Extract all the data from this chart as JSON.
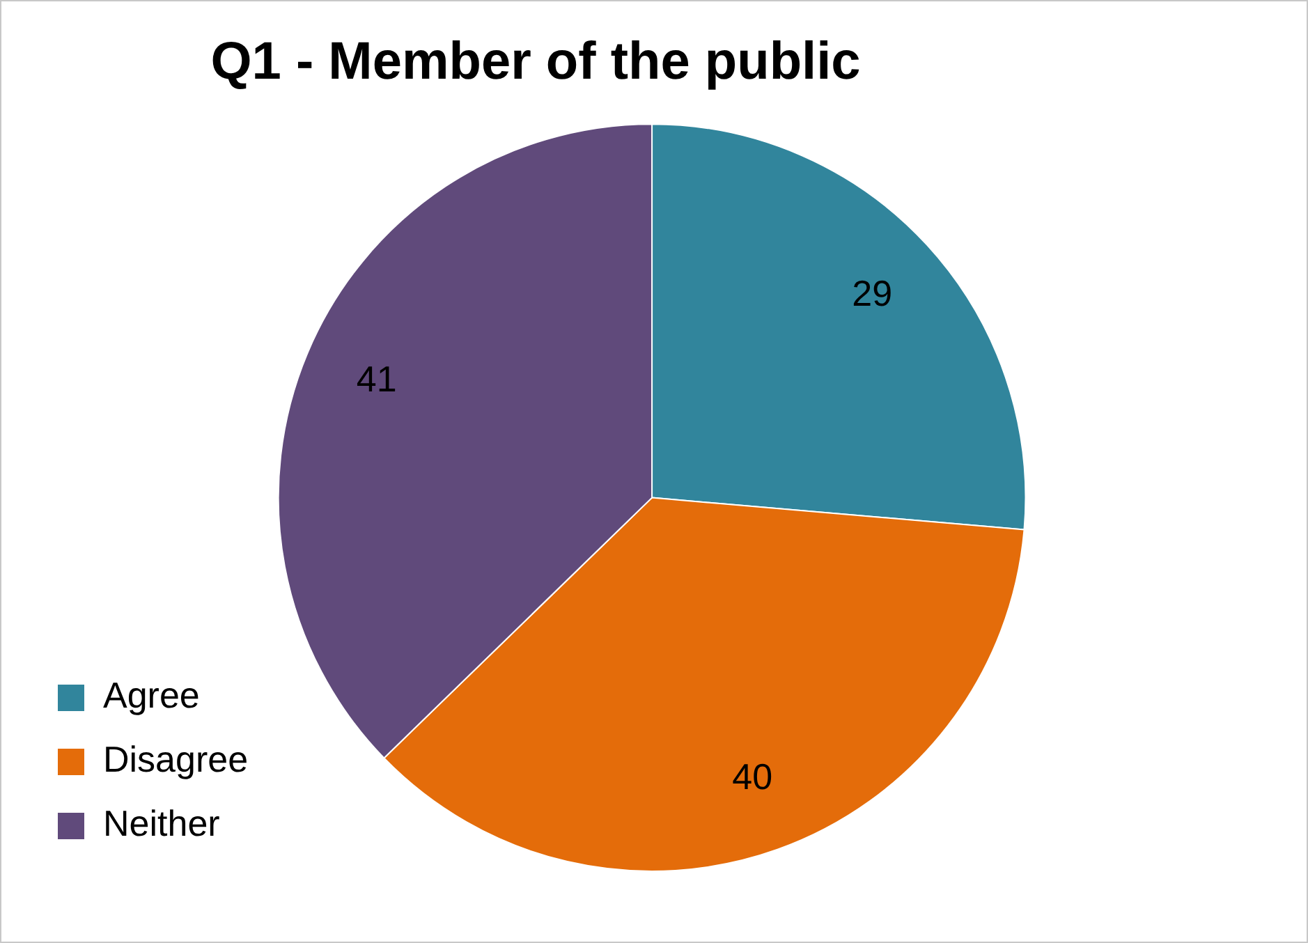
{
  "chart_data": {
    "type": "pie",
    "title": "Q1 - Member of the public",
    "categories": [
      "Agree",
      "Disagree",
      "Neither"
    ],
    "values": [
      29,
      40,
      41
    ],
    "colors": [
      "#31859c",
      "#e46c0a",
      "#604a7b"
    ],
    "data_labels": true,
    "legend": "bottom left"
  }
}
